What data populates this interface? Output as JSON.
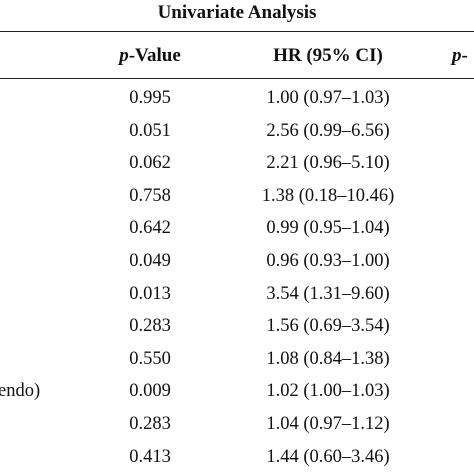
{
  "table": {
    "title": "Univariate Analysis",
    "headers": {
      "p_value": {
        "italic": "p",
        "rest": "-Value"
      },
      "hr": "HR (95% CI)",
      "next": {
        "italic": "p",
        "rest": "-"
      }
    },
    "row_label_fragment": "endo)",
    "rows": [
      [
        "0.995",
        "1.00 (0.97–1.03)"
      ],
      [
        "0.051",
        "2.56 (0.99–6.56)"
      ],
      [
        "0.062",
        "2.21 (0.96–5.10)"
      ],
      [
        "0.758",
        "1.38 (0.18–10.46)"
      ],
      [
        "0.642",
        "0.99 (0.95–1.04)"
      ],
      [
        "0.049",
        "0.96 (0.93–1.00)"
      ],
      [
        "0.013",
        "3.54 (1.31–9.60)"
      ],
      [
        "0.283",
        "1.56 (0.69–3.54)"
      ],
      [
        "0.550",
        "1.08 (0.84–1.38)"
      ],
      [
        "0.009",
        "1.02 (1.00–1.03)"
      ],
      [
        "0.283",
        "1.04 (0.97–1.12)"
      ],
      [
        "0.413",
        "1.44 (0.60–3.46)"
      ]
    ]
  }
}
